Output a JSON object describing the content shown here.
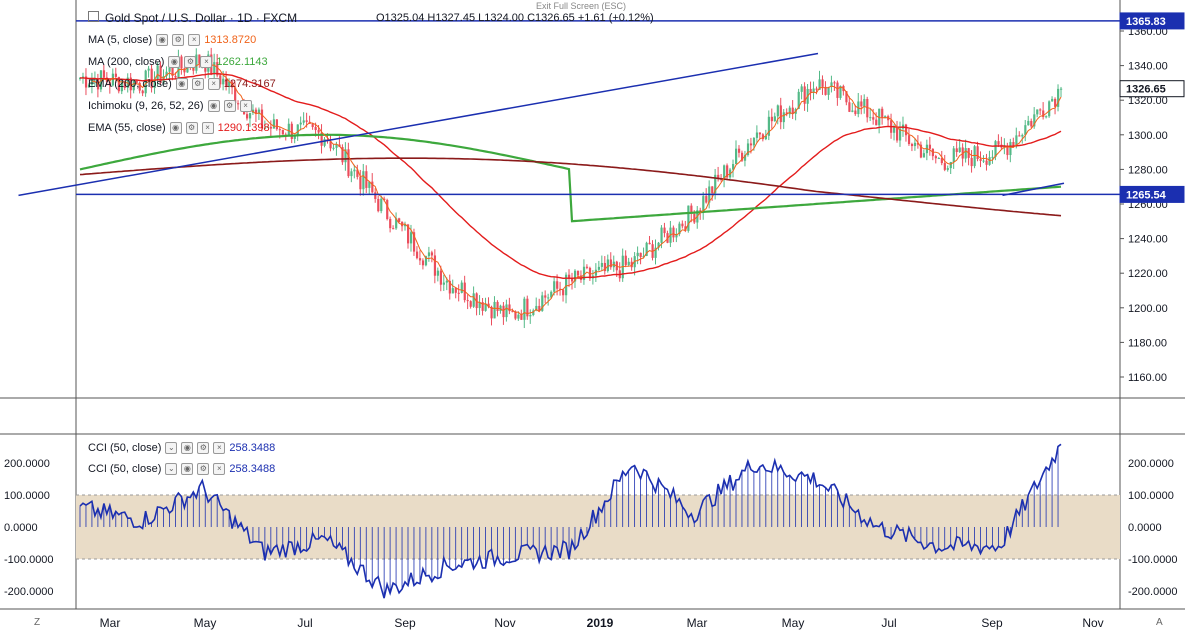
{
  "header": {
    "symbol_title": "Gold Spot / U.S. Dollar",
    "interval": "1D",
    "exchange": "FXCM",
    "ohlc": "O1325.04  H1327.45  L1324.00  C1326.65  +1.61 (+0.12%)",
    "exit_fullscreen": "Exit Full Screen (ESC)"
  },
  "indicators": [
    {
      "label": "MA (5, close)",
      "value": "1313.8720",
      "color": "#f0631a"
    },
    {
      "label": "MA (200, close)",
      "value": "1262.1143",
      "color": "#3da83d"
    },
    {
      "label": "EMA (200, close)",
      "value": "1274.3167",
      "color": "#8b1a1a"
    },
    {
      "label": "Ichimoku (9, 26, 52, 26)",
      "value": "",
      "color": "#999999"
    },
    {
      "label": "EMA (55, close)",
      "value": "1290.1398",
      "color": "#e31c1c"
    }
  ],
  "price_axis": {
    "ticks": [
      "1360.00",
      "1340.00",
      "1320.00",
      "1300.00",
      "1280.00",
      "1260.00",
      "1240.00",
      "1220.00",
      "1200.00",
      "1180.00",
      "1160.00"
    ]
  },
  "price_tags": [
    {
      "value": "1365.83",
      "color": "#1b2fb0"
    },
    {
      "value": "1326.65",
      "color": "#ffffff",
      "text_color": "#131722"
    },
    {
      "value": "1265.54",
      "color": "#1b2fb0"
    }
  ],
  "cci_panel": {
    "legends": [
      {
        "label": "CCI (50, close)",
        "value": "258.3488"
      },
      {
        "label": "CCI (50, close)",
        "value": "258.3488"
      }
    ],
    "ticks": [
      "200.0000",
      "100.0000",
      "0.0000",
      "-100.0000",
      "-200.0000"
    ]
  },
  "time_axis": {
    "labels": [
      "Mar",
      "May",
      "Jul",
      "Sep",
      "Nov",
      "2019",
      "Mar",
      "May",
      "Jul",
      "Sep",
      "Nov"
    ]
  },
  "colors": {
    "up": "#53b987",
    "down": "#eb4d5c",
    "level_line": "#1b2fb0",
    "cci_line": "#1b2fb0",
    "cci_band": "#e9dcc7"
  },
  "chart_data": [
    {
      "type": "candlestick",
      "title": "Gold Spot / U.S. Dollar, 1D, FXCM",
      "ylim": [
        1150,
        1370
      ],
      "x": [
        "2018-02",
        "2018-03",
        "2018-04",
        "2018-05",
        "2018-06",
        "2018-07",
        "2018-08",
        "2018-09",
        "2018-10",
        "2018-11",
        "2018-12",
        "2019-01",
        "2019-02",
        "2019-03",
        "2019-04",
        "2019-05",
        "2019-06"
      ],
      "close_approx": [
        1333,
        1330,
        1344,
        1305,
        1300,
        1255,
        1215,
        1195,
        1215,
        1225,
        1255,
        1300,
        1330,
        1310,
        1285,
        1290,
        1326.65
      ],
      "series": [
        {
          "name": "MA (5, close)",
          "last": 1313.872
        },
        {
          "name": "MA (200, close)",
          "last": 1262.1143
        },
        {
          "name": "EMA (200, close)",
          "last": 1274.3167
        },
        {
          "name": "EMA (55, close)",
          "last": 1290.1398
        }
      ],
      "horizontal_levels": [
        1365.83,
        1265.54
      ],
      "trendlines": [
        {
          "from": [
            "2019-02",
            1347
          ],
          "to": [
            "2019-07",
            1265
          ]
        },
        {
          "from": [
            "2019-05",
            1265
          ],
          "to": [
            "2019-06",
            1272
          ]
        }
      ]
    },
    {
      "type": "line",
      "title": "CCI (50, close)",
      "ylim": [
        -230,
        280
      ],
      "band": [
        -100,
        100
      ],
      "x": [
        "2018-02",
        "2018-03",
        "2018-04",
        "2018-05",
        "2018-06",
        "2018-07",
        "2018-08",
        "2018-09",
        "2018-10",
        "2018-11",
        "2018-12",
        "2019-01",
        "2019-02",
        "2019-03",
        "2019-04",
        "2019-05",
        "2019-06"
      ],
      "values": [
        60,
        20,
        120,
        -80,
        -40,
        -200,
        -120,
        -90,
        -70,
        200,
        40,
        200,
        150,
        0,
        -60,
        -60,
        258.3488
      ]
    }
  ]
}
